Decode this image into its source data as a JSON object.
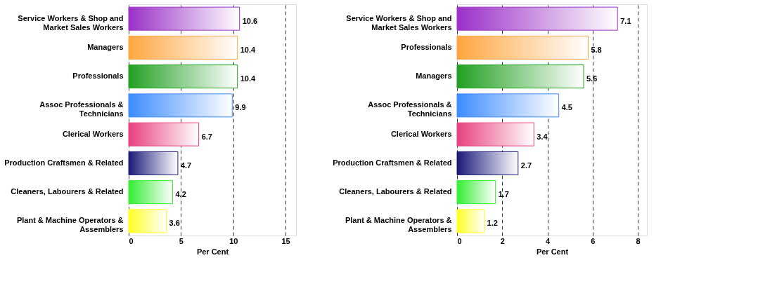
{
  "chart_data": [
    {
      "type": "bar",
      "orientation": "horizontal",
      "categories": [
        "Service Workers & Shop and Market Sales Workers",
        "Managers",
        "Professionals",
        "Assoc Professionals & Technicians",
        "Clerical Workers",
        "Production Craftsmen & Related",
        "Cleaners, Labourers & Related",
        "Plant & Machine Operators & Assemblers"
      ],
      "values": [
        10.6,
        10.4,
        10.4,
        9.9,
        6.7,
        4.7,
        4.2,
        3.6
      ],
      "colors": [
        "#9b30c8",
        "#ffa640",
        "#22a022",
        "#3d8cff",
        "#e8407f",
        "#1a1a7a",
        "#33ee33",
        "#ffff22"
      ],
      "xlabel": "Per Cent",
      "xlim": [
        0,
        16
      ],
      "xticks": [
        0,
        5,
        10,
        15
      ],
      "grid": "x",
      "data_labels": true
    },
    {
      "type": "bar",
      "orientation": "horizontal",
      "categories": [
        "Service Workers & Shop and Market Sales Workers",
        "Professionals",
        "Managers",
        "Assoc Professionals & Technicians",
        "Clerical Workers",
        "Production Craftsmen & Related",
        "Cleaners, Labourers & Related",
        "Plant & Machine Operators & Assemblers"
      ],
      "values": [
        7.1,
        5.8,
        5.6,
        4.5,
        3.4,
        2.7,
        1.7,
        1.2
      ],
      "colors": [
        "#9b30c8",
        "#ffa640",
        "#22a022",
        "#3d8cff",
        "#e8407f",
        "#1a1a7a",
        "#33ee33",
        "#ffff22"
      ],
      "xlabel": "Per Cent",
      "xlim": [
        0,
        8.4
      ],
      "xticks": [
        0,
        2,
        4,
        6,
        8
      ],
      "grid": "x",
      "data_labels": true
    }
  ]
}
